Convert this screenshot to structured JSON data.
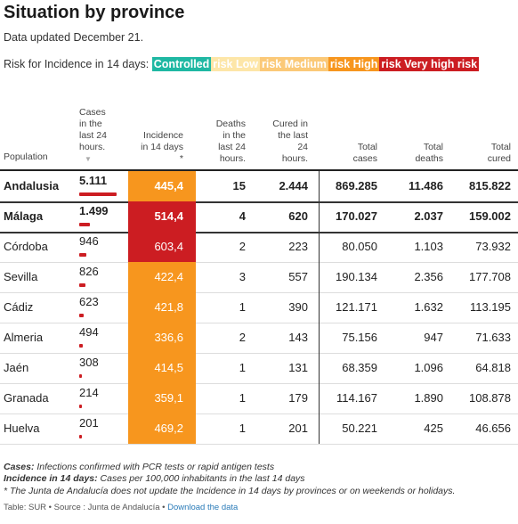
{
  "title": "Situation by province",
  "updated": "Data updated December 21.",
  "legend": {
    "label": "Risk for Incidence in 14 days:",
    "items": [
      {
        "label": "Controlled",
        "color": "#1fb8a3"
      },
      {
        "label": "risk Low",
        "color": "#fde6a8"
      },
      {
        "label": "risk Medium",
        "color": "#fbc978"
      },
      {
        "label": "risk High",
        "color": "#f7961e"
      },
      {
        "label": "risk Very high risk",
        "color": "#cc1d22"
      }
    ]
  },
  "headers": {
    "population": "Population",
    "cases_l1": "Cases",
    "cases_l2": "in the",
    "cases_l3": "last 24",
    "cases_l4": "hours.",
    "cases_sort": "▼",
    "inc_l1": "Incidence",
    "inc_l2": "in 14 days",
    "inc_l3": "*",
    "deaths_l1": "Deaths",
    "deaths_l2": "in the",
    "deaths_l3": "last 24",
    "deaths_l4": "hours.",
    "cured_l1": "Cured in",
    "cured_l2": "the last",
    "cured_l3": "24",
    "cured_l4": "hours.",
    "total_cases_l1": "Total",
    "total_cases_l2": "cases",
    "total_deaths_l1": "Total",
    "total_deaths_l2": "deaths",
    "total_cured_l1": "Total",
    "total_cured_l2": "cured"
  },
  "rows": [
    {
      "name": "Andalusia",
      "cases": "5.111",
      "cases_num": 5111,
      "incidence": "445,4",
      "inc_color": "#f7961e",
      "deaths": "15",
      "cured": "2.444",
      "total_cases": "869.285",
      "total_deaths": "11.486",
      "total_cured": "815.822"
    },
    {
      "name": "Málaga",
      "cases": "1.499",
      "cases_num": 1499,
      "incidence": "514,4",
      "inc_color": "#cc1d22",
      "deaths": "4",
      "cured": "620",
      "total_cases": "170.027",
      "total_deaths": "2.037",
      "total_cured": "159.002"
    },
    {
      "name": "Córdoba",
      "cases": "946",
      "cases_num": 946,
      "incidence": "603,4",
      "inc_color": "#cc1d22",
      "deaths": "2",
      "cured": "223",
      "total_cases": "80.050",
      "total_deaths": "1.103",
      "total_cured": "73.932"
    },
    {
      "name": "Sevilla",
      "cases": "826",
      "cases_num": 826,
      "incidence": "422,4",
      "inc_color": "#f7961e",
      "deaths": "3",
      "cured": "557",
      "total_cases": "190.134",
      "total_deaths": "2.356",
      "total_cured": "177.708"
    },
    {
      "name": "Cádiz",
      "cases": "623",
      "cases_num": 623,
      "incidence": "421,8",
      "inc_color": "#f7961e",
      "deaths": "1",
      "cured": "390",
      "total_cases": "121.171",
      "total_deaths": "1.632",
      "total_cured": "113.195"
    },
    {
      "name": "Almeria",
      "cases": "494",
      "cases_num": 494,
      "incidence": "336,6",
      "inc_color": "#f7961e",
      "deaths": "2",
      "cured": "143",
      "total_cases": "75.156",
      "total_deaths": "947",
      "total_cured": "71.633"
    },
    {
      "name": "Jaén",
      "cases": "308",
      "cases_num": 308,
      "incidence": "414,5",
      "inc_color": "#f7961e",
      "deaths": "1",
      "cured": "131",
      "total_cases": "68.359",
      "total_deaths": "1.096",
      "total_cured": "64.818"
    },
    {
      "name": "Granada",
      "cases": "214",
      "cases_num": 214,
      "incidence": "359,1",
      "inc_color": "#f7961e",
      "deaths": "1",
      "cured": "179",
      "total_cases": "114.167",
      "total_deaths": "1.890",
      "total_cured": "108.878"
    },
    {
      "name": "Huelva",
      "cases": "201",
      "cases_num": 201,
      "incidence": "469,2",
      "inc_color": "#f7961e",
      "deaths": "1",
      "cured": "201",
      "total_cases": "50.221",
      "total_deaths": "425",
      "total_cured": "46.656"
    }
  ],
  "footnotes": {
    "cases_label": "Cases:",
    "cases_text": " Infections confirmed with PCR tests or rapid antigen tests",
    "inc_label": "Incidence in 14 days:",
    "inc_text": " Cases per 100,000 inhabitants in the last 14 days",
    "note": "* The Junta de Andalucía does not update the Incidence in 14 days by provinces or on weekends or holidays."
  },
  "credits": {
    "text": "Table: SUR • Source : Junta de Andalucía • ",
    "link": "Download the data"
  }
}
